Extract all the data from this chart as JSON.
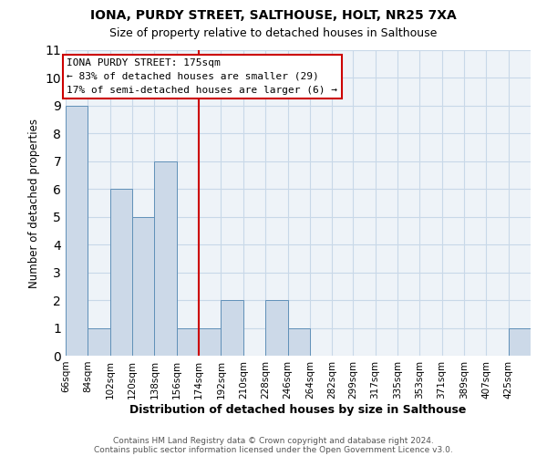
{
  "title": "IONA, PURDY STREET, SALTHOUSE, HOLT, NR25 7XA",
  "subtitle": "Size of property relative to detached houses in Salthouse",
  "xlabel": "Distribution of detached houses by size in Salthouse",
  "ylabel": "Number of detached properties",
  "bin_labels": [
    "66sqm",
    "84sqm",
    "102sqm",
    "120sqm",
    "138sqm",
    "156sqm",
    "174sqm",
    "192sqm",
    "210sqm",
    "228sqm",
    "246sqm",
    "264sqm",
    "282sqm",
    "299sqm",
    "317sqm",
    "335sqm",
    "353sqm",
    "371sqm",
    "389sqm",
    "407sqm",
    "425sqm"
  ],
  "bin_edges": [
    66,
    84,
    102,
    120,
    138,
    156,
    174,
    192,
    210,
    228,
    246,
    264,
    282,
    299,
    317,
    335,
    353,
    371,
    389,
    407,
    425,
    443
  ],
  "counts": [
    9,
    1,
    6,
    5,
    7,
    1,
    1,
    2,
    0,
    2,
    1,
    0,
    0,
    0,
    0,
    0,
    0,
    0,
    0,
    0,
    1
  ],
  "bar_color": "#ccd9e8",
  "bar_edgecolor": "#6090b8",
  "vline_x": 174,
  "vline_color": "#cc0000",
  "annotation_title": "IONA PURDY STREET: 175sqm",
  "annotation_line1": "← 83% of detached houses are smaller (29)",
  "annotation_line2": "17% of semi-detached houses are larger (6) →",
  "annotation_box_edgecolor": "#cc0000",
  "annotation_box_facecolor": "#ffffff",
  "ylim": [
    0,
    11
  ],
  "yticks": [
    0,
    1,
    2,
    3,
    4,
    5,
    6,
    7,
    8,
    9,
    10,
    11
  ],
  "footer1": "Contains HM Land Registry data © Crown copyright and database right 2024.",
  "footer2": "Contains public sector information licensed under the Open Government Licence v3.0.",
  "background_color": "#ffffff",
  "grid_color": "#c8d8e8",
  "axes_bg_color": "#eef3f8"
}
